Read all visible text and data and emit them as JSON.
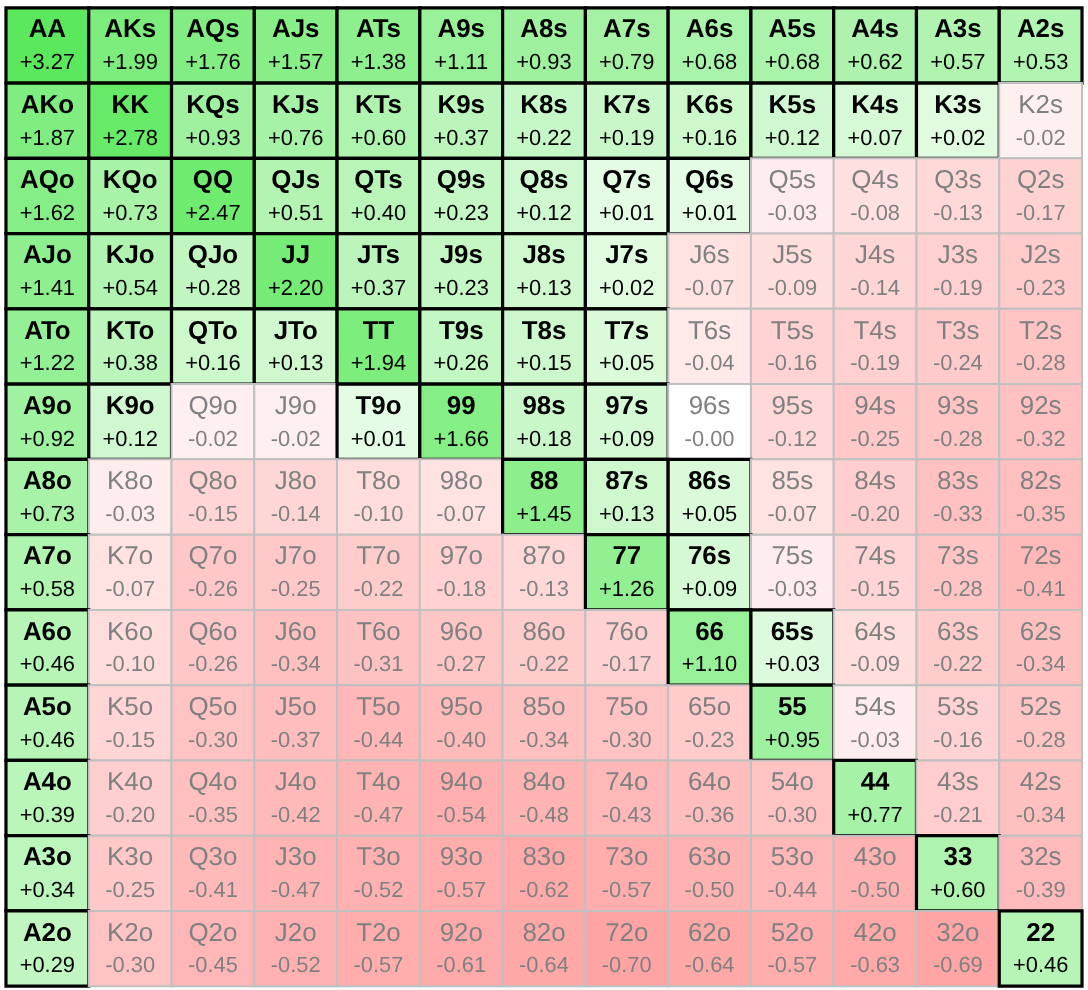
{
  "chart_data": {
    "type": "heatmap",
    "categories": [
      null,
      null,
      null,
      null,
      null,
      null,
      null,
      null,
      null,
      null,
      null,
      null,
      null
    ],
    "y_categories": [
      null,
      null,
      null,
      null,
      null,
      null,
      null,
      null,
      null,
      null,
      null,
      null,
      null
    ],
    "tick_labels": false,
    "cells": [
      [
        3.27,
        1.99,
        1.76,
        1.57,
        1.38,
        1.11,
        0.93,
        0.79,
        0.68,
        0.68,
        0.62,
        0.57,
        0.53
      ],
      [
        1.87,
        2.78,
        0.93,
        0.76,
        0.6,
        0.37,
        0.22,
        0.19,
        0.16,
        0.12,
        0.07,
        0.02,
        -0.02
      ],
      [
        1.62,
        0.73,
        2.47,
        0.51,
        0.4,
        0.23,
        0.12,
        0.01,
        0.01,
        -0.03,
        -0.08,
        -0.13,
        -0.17
      ],
      [
        1.41,
        0.54,
        0.28,
        2.2,
        0.37,
        0.23,
        0.13,
        0.02,
        -0.07,
        -0.09,
        -0.14,
        -0.19,
        -0.23
      ],
      [
        1.22,
        0.38,
        0.16,
        0.13,
        1.94,
        0.26,
        0.15,
        0.05,
        -0.04,
        -0.16,
        -0.19,
        -0.24,
        -0.28
      ],
      [
        0.92,
        0.12,
        -0.02,
        -0.02,
        0.01,
        1.66,
        0.18,
        0.09,
        -0.0,
        -0.12,
        -0.25,
        -0.28,
        -0.32
      ],
      [
        0.73,
        -0.03,
        -0.15,
        -0.14,
        -0.1,
        -0.07,
        1.45,
        0.13,
        0.05,
        -0.07,
        -0.2,
        -0.33,
        -0.35
      ],
      [
        0.58,
        -0.07,
        -0.26,
        -0.25,
        -0.22,
        -0.18,
        -0.13,
        1.26,
        0.09,
        -0.03,
        -0.15,
        -0.28,
        -0.41
      ],
      [
        0.46,
        -0.1,
        -0.26,
        -0.34,
        -0.31,
        -0.27,
        -0.22,
        -0.17,
        1.1,
        0.03,
        -0.09,
        -0.22,
        -0.34
      ],
      [
        0.46,
        -0.15,
        -0.3,
        -0.37,
        -0.44,
        -0.4,
        -0.34,
        -0.3,
        -0.23,
        0.95,
        -0.03,
        -0.16,
        -0.28
      ],
      [
        0.39,
        -0.2,
        -0.35,
        -0.42,
        -0.47,
        -0.54,
        -0.48,
        -0.43,
        -0.36,
        -0.3,
        0.77,
        -0.21,
        -0.34
      ],
      [
        0.34,
        -0.25,
        -0.41,
        -0.47,
        -0.52,
        -0.57,
        -0.62,
        -0.57,
        -0.5,
        -0.44,
        -0.5,
        0.6,
        -0.39
      ],
      [
        0.29,
        -0.3,
        -0.45,
        -0.52,
        -0.57,
        -0.61,
        -0.64,
        -0.7,
        -0.64,
        -0.57,
        -0.63,
        -0.69,
        0.46
      ]
    ],
    "cell_labels": [
      [
        "+3.27",
        "+1.99",
        "+1.76",
        "+1.57",
        "+1.38",
        "+1.11",
        "+0.93",
        "+0.79",
        "+0.68",
        "+0.68",
        "+0.62",
        "+0.57",
        "+0.53"
      ],
      [
        "+1.87",
        "+2.78",
        "+0.93",
        "+0.76",
        "+0.60",
        "+0.37",
        "+0.22",
        "+0.19",
        "+0.16",
        "+0.12",
        "+0.07",
        "+0.02",
        "-0.02"
      ],
      [
        "+1.62",
        "+0.73",
        "+2.47",
        "+0.51",
        "+0.40",
        "+0.23",
        "+0.12",
        "+0.01",
        "+0.01",
        "-0.03",
        "-0.08",
        "-0.13",
        "-0.17"
      ],
      [
        "+1.41",
        "+0.54",
        "+0.28",
        "+2.20",
        "+0.37",
        "+0.23",
        "+0.13",
        "+0.02",
        "-0.07",
        "-0.09",
        "-0.14",
        "-0.19",
        "-0.23"
      ],
      [
        "+1.22",
        "+0.38",
        "+0.16",
        "+0.13",
        "+1.94",
        "+0.26",
        "+0.15",
        "+0.05",
        "-0.04",
        "-0.16",
        "-0.19",
        "-0.24",
        "-0.28"
      ],
      [
        "+0.92",
        "+0.12",
        "-0.02",
        "-0.02",
        "+0.01",
        "+1.66",
        "+0.18",
        "+0.09",
        "-0.00",
        "-0.12",
        "-0.25",
        "-0.28",
        "-0.32"
      ],
      [
        "+0.73",
        "-0.03",
        "-0.15",
        "-0.14",
        "-0.10",
        "-0.07",
        "+1.45",
        "+0.13",
        "+0.05",
        "-0.07",
        "-0.20",
        "-0.33",
        "-0.35"
      ],
      [
        "+0.58",
        "-0.07",
        "-0.26",
        "-0.25",
        "-0.22",
        "-0.18",
        "-0.13",
        "+1.26",
        "+0.09",
        "-0.03",
        "-0.15",
        "-0.28",
        "-0.41"
      ],
      [
        "+0.46",
        "-0.10",
        "-0.26",
        "-0.34",
        "-0.31",
        "-0.27",
        "-0.22",
        "-0.17",
        "+1.10",
        "+0.03",
        "-0.09",
        "-0.22",
        "-0.34"
      ],
      [
        "+0.46",
        "-0.15",
        "-0.30",
        "-0.37",
        "-0.44",
        "-0.40",
        "-0.34",
        "-0.30",
        "-0.23",
        "+0.95",
        "-0.03",
        "-0.16",
        "-0.28"
      ],
      [
        "+0.39",
        "-0.20",
        "-0.35",
        "-0.42",
        "-0.47",
        "-0.54",
        "-0.48",
        "-0.43",
        "-0.36",
        "-0.30",
        "+0.77",
        "-0.21",
        "-0.34"
      ],
      [
        "+0.34",
        "-0.25",
        "-0.41",
        "-0.47",
        "-0.52",
        "-0.57",
        "-0.62",
        "-0.57",
        "-0.50",
        "-0.44",
        "-0.50",
        "+0.60",
        "-0.39"
      ],
      [
        "+0.29",
        "-0.30",
        "-0.45",
        "-0.52",
        "-0.57",
        "-0.61",
        "-0.64",
        "-0.70",
        "-0.64",
        "-0.57",
        "-0.63",
        "-0.69",
        "+0.46"
      ]
    ],
    "annotations": [
      "AA",
      "AKs",
      "AQs",
      "AJs",
      "ATs",
      "A9s",
      "A8s",
      "A7s",
      "A6s",
      "A5s",
      "A4s",
      "A3s",
      "A2s",
      "AKo",
      "KK",
      "KQs",
      "KJs",
      "KTs",
      "K9s",
      "K8s",
      "K7s",
      "K6s",
      "K5s",
      "K4s",
      "K3s",
      "K2s",
      "AQo",
      "KQo",
      "QQ",
      "QJs",
      "QTs",
      "Q9s",
      "Q8s",
      "Q7s",
      "Q6s",
      "Q5s",
      "Q4s",
      "Q3s",
      "Q2s",
      "AJo",
      "KJo",
      "QJo",
      "JJ",
      "JTs",
      "J9s",
      "J8s",
      "J7s",
      "J6s",
      "J5s",
      "J4s",
      "J3s",
      "J2s",
      "ATo",
      "KTo",
      "QTo",
      "JTo",
      "TT",
      "T9s",
      "T8s",
      "T7s",
      "T6s",
      "T5s",
      "T4s",
      "T3s",
      "T2s",
      "A9o",
      "K9o",
      "Q9o",
      "J9o",
      "T9o",
      "99",
      "98s",
      "97s",
      "96s",
      "95s",
      "94s",
      "93s",
      "92s",
      "A8o",
      "K8o",
      "Q8o",
      "J8o",
      "T8o",
      "98o",
      "88",
      "87s",
      "86s",
      "85s",
      "84s",
      "83s",
      "82s",
      "A7o",
      "K7o",
      "Q7o",
      "J7o",
      "T7o",
      "97o",
      "87o",
      "77",
      "76s",
      "75s",
      "74s",
      "73s",
      "72s",
      "A6o",
      "K6o",
      "Q6o",
      "J6o",
      "T6o",
      "96o",
      "86o",
      "76o",
      "66",
      "65s",
      "64s",
      "63s",
      "62s",
      "A5o",
      "K5o",
      "Q5o",
      "J5o",
      "T5o",
      "95o",
      "85o",
      "75o",
      "65o",
      "55",
      "54s",
      "53s",
      "52s",
      "A4o",
      "K4o",
      "Q4o",
      "J4o",
      "T4o",
      "94o",
      "84o",
      "74o",
      "64o",
      "54o",
      "44",
      "43s",
      "42s",
      "A3o",
      "K3o",
      "Q3o",
      "J3o",
      "T3o",
      "93o",
      "83o",
      "73o",
      "63o",
      "53o",
      "43o",
      "33",
      "32s",
      "A2o",
      "K2o",
      "Q2o",
      "J2o",
      "T2o",
      "92o",
      "82o",
      "72o",
      "62o",
      "52o",
      "42o",
      "32o",
      "22"
    ]
  }
}
